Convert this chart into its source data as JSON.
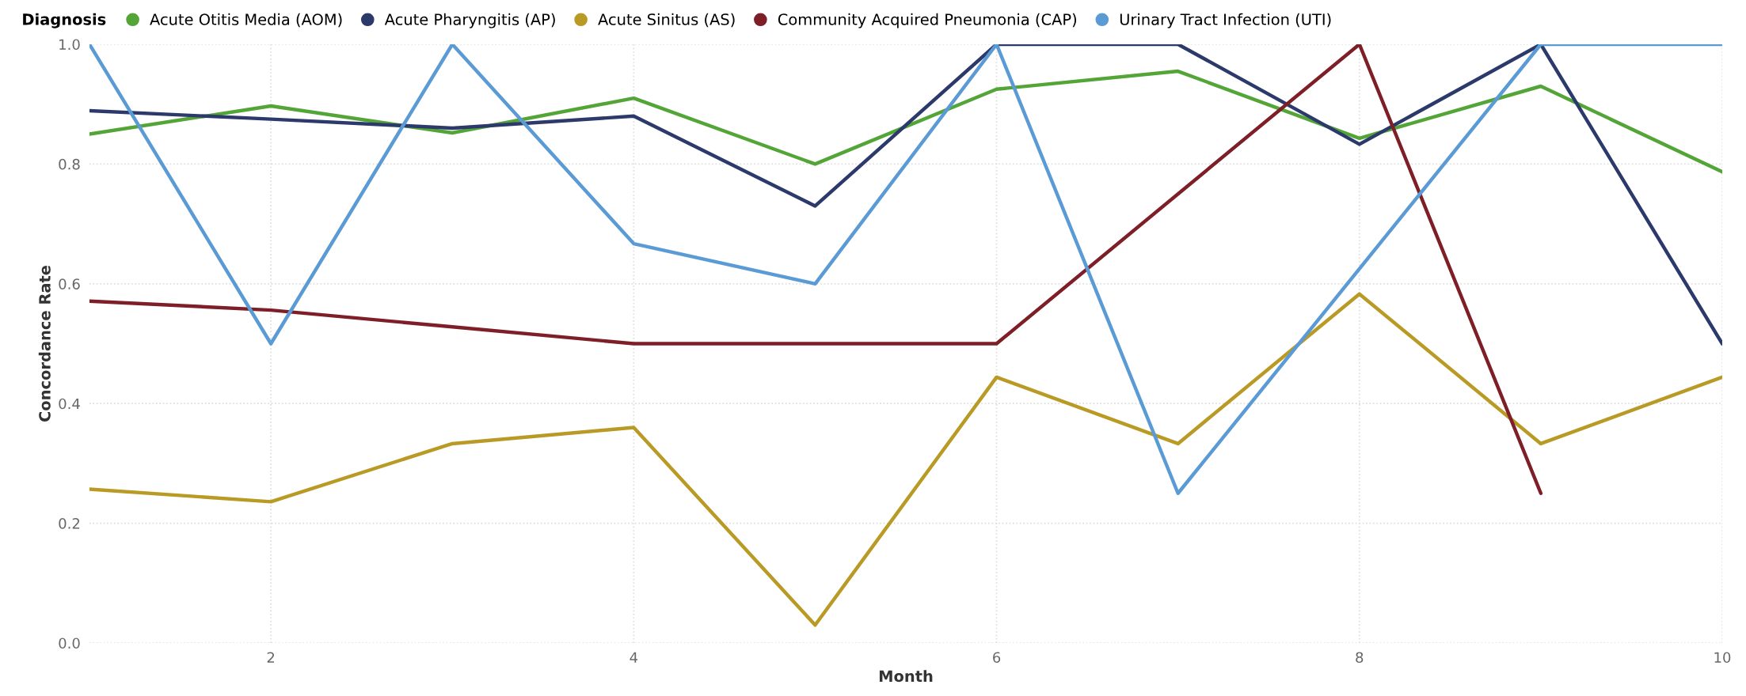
{
  "chart_data": {
    "type": "line",
    "xlabel": "Month",
    "ylabel": "Concordance Rate",
    "legend_title": "Diagnosis",
    "legend": "top left",
    "grid": true,
    "marker": "none",
    "line_style": "solid",
    "x": [
      1,
      2,
      3,
      4,
      5,
      6,
      7,
      8,
      9,
      10
    ],
    "xlim": [
      1,
      10
    ],
    "xticks": [
      2,
      4,
      6,
      8,
      10
    ],
    "ylim": [
      0,
      1
    ],
    "yticks": [
      {
        "value": 0,
        "label": "0.0"
      },
      {
        "value": 0.2,
        "label": "0.2"
      },
      {
        "value": 0.4,
        "label": "0.4"
      },
      {
        "value": 0.6,
        "label": "0.6"
      },
      {
        "value": 0.8,
        "label": "0.8"
      },
      {
        "value": 1,
        "label": "1.0"
      }
    ],
    "series": [
      {
        "name": "Acute Otitis Media (AOM)",
        "color": "#53a537",
        "values": [
          0.85,
          0.897,
          0.852,
          0.91,
          0.8,
          0.925,
          0.955,
          0.843,
          0.93,
          0.787
        ]
      },
      {
        "name": "Acute Pharyngitis (AP)",
        "color": "#2c3a6b",
        "values": [
          0.889,
          0.875,
          0.86,
          0.88,
          0.73,
          1,
          1,
          0.833,
          1,
          0.5
        ]
      },
      {
        "name": "Acute Sinitus (AS)",
        "color": "#b89a25",
        "values": [
          0.257,
          0.236,
          0.333,
          0.36,
          0.03,
          0.444,
          0.333,
          0.583,
          0.333,
          0.444
        ]
      },
      {
        "name": "Community Acquired Pneumonia (CAP)",
        "color": "#7e1f28",
        "values": [
          0.571,
          0.556,
          0.528,
          0.5,
          0.5,
          0.5,
          0.75,
          1,
          0.25,
          null
        ]
      },
      {
        "name": "Urinary Tract Infection (UTI)",
        "color": "#5b9bd5",
        "values": [
          1,
          0.5,
          1,
          0.667,
          0.6,
          1,
          0.25,
          0.625,
          1,
          1
        ]
      }
    ]
  }
}
